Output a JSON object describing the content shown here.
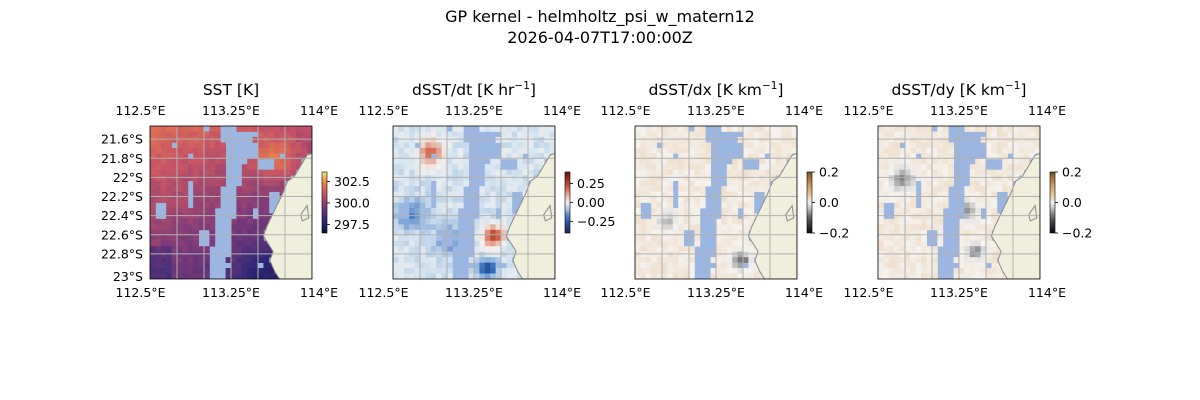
{
  "figure": {
    "title_line1": "GP kernel - helmholtz_psi_w_matern12",
    "title_line2": "2026-04-07T17:00:00Z"
  },
  "colors": {
    "land": "#efefdb",
    "coast": "#8a8a8a",
    "mask": "#9bb6e0",
    "grid": "#b0b0b0"
  },
  "chart_data": [
    {
      "type": "heatmap",
      "title": "SST [K]",
      "colormap": "thermal",
      "xticks": [
        "112.5°E",
        "113.25°E",
        "114°E"
      ],
      "yticks": [
        "21.6°S",
        "21.8°S",
        "22°S",
        "22.2°S",
        "22.4°S",
        "22.6°S",
        "22.8°S",
        "23°S"
      ],
      "colorbar": {
        "ticks": [
          "302.5",
          "300.0",
          "297.5"
        ],
        "range": [
          296.5,
          303.6
        ]
      },
      "extent": {
        "lon": [
          112.5,
          114.0
        ],
        "lat": [
          -23.0,
          -21.5
        ]
      },
      "value_range_shown": [
        297.5,
        303.0
      ]
    },
    {
      "type": "heatmap",
      "title": "dSST/dt [K hr",
      "title_sup": "−1",
      "title_end": "]",
      "colormap": "balance",
      "xticks": [
        "112.5°E",
        "113.25°E",
        "114°E"
      ],
      "colorbar": {
        "ticks": [
          "0.25",
          "0.00",
          "−0.25"
        ],
        "range": [
          -0.4,
          0.4
        ]
      },
      "extent": {
        "lon": [
          112.5,
          114.0
        ],
        "lat": [
          -23.0,
          -21.5
        ]
      },
      "value_range_shown": [
        -0.35,
        0.3
      ]
    },
    {
      "type": "heatmap",
      "title": "dSST/dx [K km",
      "title_sup": "−1",
      "title_end": "]",
      "colormap": "gray-ochre",
      "xticks": [
        "112.5°E",
        "113.25°E",
        "114°E"
      ],
      "colorbar": {
        "ticks": [
          "0.2",
          "0.0",
          "−0.2"
        ],
        "range": [
          -0.2,
          0.2
        ]
      },
      "extent": {
        "lon": [
          112.5,
          114.0
        ],
        "lat": [
          -23.0,
          -21.5
        ]
      },
      "value_range_shown": [
        -0.12,
        0.05
      ]
    },
    {
      "type": "heatmap",
      "title": "dSST/dy [K km",
      "title_sup": "−1",
      "title_end": "]",
      "colormap": "gray-ochre",
      "xticks": [
        "112.5°E",
        "113.25°E",
        "114°E"
      ],
      "colorbar": {
        "ticks": [
          "0.2",
          "0.0",
          "−0.2"
        ],
        "range": [
          -0.2,
          0.2
        ]
      },
      "extent": {
        "lon": [
          112.5,
          114.0
        ],
        "lat": [
          -23.0,
          -21.5
        ]
      },
      "value_range_shown": [
        -0.1,
        0.05
      ]
    }
  ]
}
